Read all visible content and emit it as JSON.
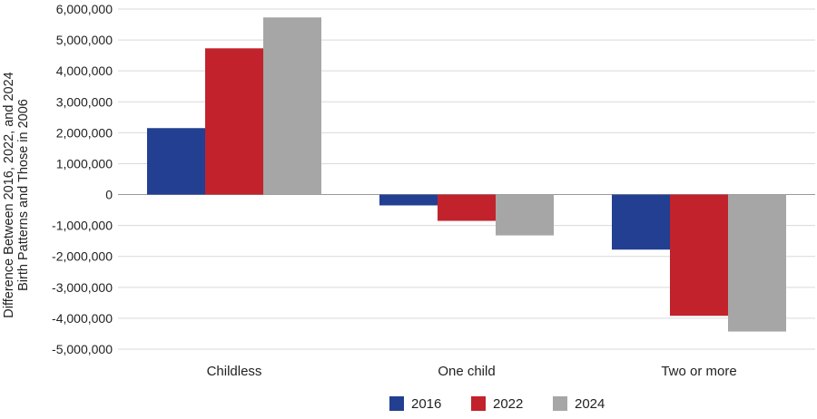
{
  "chart_data": {
    "type": "bar",
    "categories": [
      "Childless",
      "One child",
      "Two or more"
    ],
    "series": [
      {
        "name": "2016",
        "values": [
          2150000,
          -350000,
          -1780000
        ],
        "color": "#223f91"
      },
      {
        "name": "2022",
        "values": [
          4730000,
          -850000,
          -3920000
        ],
        "color": "#c1222c"
      },
      {
        "name": "2024",
        "values": [
          5730000,
          -1320000,
          -4430000
        ],
        "color": "#a6a6a6"
      }
    ],
    "ylabel_lines": [
      "Difference Between 2016, 2022, and 2024",
      "Birth Patterns and Those in 2006"
    ],
    "ylim": [
      -5000000,
      6000000
    ],
    "yticks": [
      6000000,
      5000000,
      4000000,
      3000000,
      2000000,
      1000000,
      0,
      -1000000,
      -2000000,
      -3000000,
      -4000000,
      -5000000
    ],
    "ytick_labels": [
      "6,000,000",
      "5,000,000",
      "4,000,000",
      "3,000,000",
      "2,000,000",
      "1,000,000",
      "0",
      "-1,000,000",
      "-2,000,000",
      "-3,000,000",
      "-4,000,000",
      "-5,000,000"
    ],
    "grid": true,
    "legend": "bottom-center"
  }
}
